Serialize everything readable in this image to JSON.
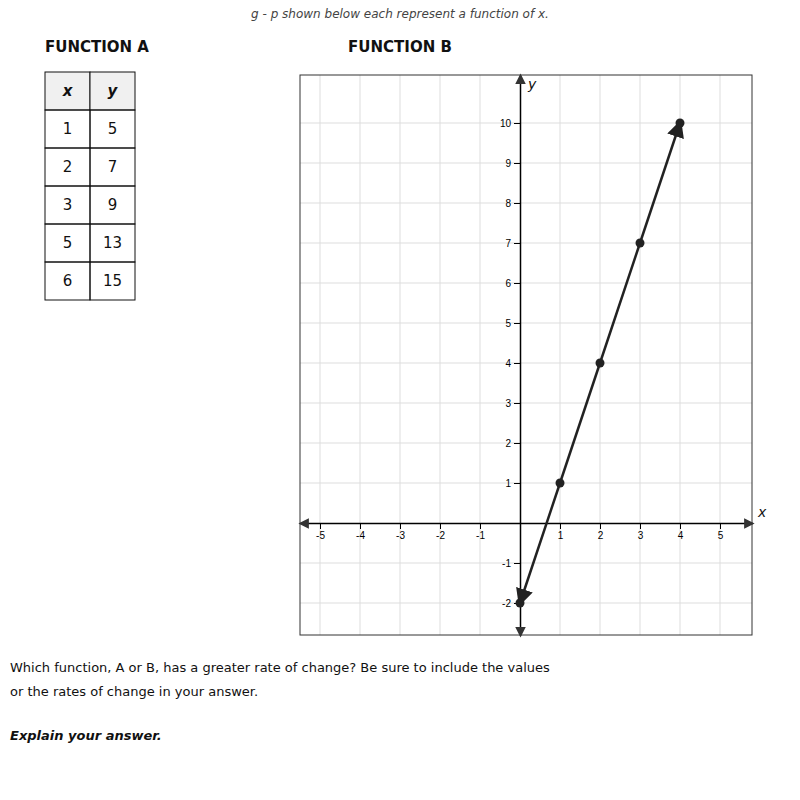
{
  "chart_data": [
    {
      "type": "table",
      "title": "FUNCTION A",
      "columns": [
        "x",
        "y"
      ],
      "x": [
        1,
        2,
        3,
        5,
        6
      ],
      "values": [
        5,
        7,
        9,
        13,
        15
      ]
    },
    {
      "type": "line",
      "title": "FUNCTION B",
      "x_label": "x",
      "y_label": "y",
      "x": [
        0,
        1,
        2,
        3,
        4
      ],
      "values": [
        -2,
        1,
        4,
        7,
        10
      ],
      "color": "#222222",
      "marker": "circle",
      "xlim": [
        -5.5,
        5.8
      ],
      "ylim": [
        -2.8,
        11.2
      ],
      "xticks": [
        -5,
        -4,
        -3,
        -2,
        -1,
        1,
        2,
        3,
        4,
        5
      ],
      "yticks": [
        -2,
        -1,
        1,
        2,
        3,
        4,
        5,
        6,
        7,
        8,
        9,
        10
      ],
      "grid": true,
      "annotations": [
        "g - p shown below each represent a function of x.",
        "Which function, A or B, has a greater rate of change? Be sure to include the values",
        "or the rates of change in your answer.",
        "Explain your answer."
      ]
    }
  ]
}
